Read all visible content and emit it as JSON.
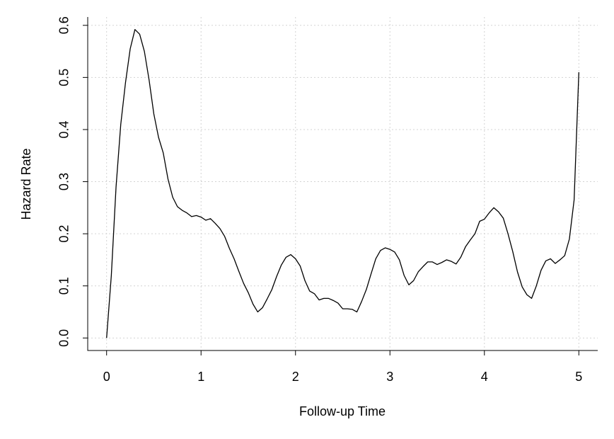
{
  "chart_data": {
    "type": "line",
    "x_label": "Follow-up Time",
    "y_label": "Hazard Rate",
    "color": "#000000",
    "grid": true,
    "xlim": [
      -0.2,
      5.2
    ],
    "ylim": [
      -0.024,
      0.616
    ],
    "xticks": [
      0,
      1,
      2,
      3,
      4,
      5
    ],
    "yticks": [
      {
        "value": 0,
        "label": "0.0"
      },
      0.1,
      0.2,
      0.3,
      0.4,
      0.5,
      0.6
    ],
    "x": [
      0,
      0.05,
      0.1,
      0.15,
      0.2,
      0.25,
      0.3,
      0.35,
      0.4,
      0.45,
      0.5,
      0.55,
      0.6,
      0.65,
      0.7,
      0.75,
      0.8,
      0.85,
      0.9,
      0.95,
      1.0,
      1.05,
      1.1,
      1.15,
      1.2,
      1.25,
      1.3,
      1.35,
      1.4,
      1.45,
      1.5,
      1.55,
      1.6,
      1.65,
      1.7,
      1.75,
      1.8,
      1.85,
      1.9,
      1.95,
      2.0,
      2.05,
      2.1,
      2.15,
      2.2,
      2.25,
      2.3,
      2.35,
      2.4,
      2.45,
      2.5,
      2.55,
      2.6,
      2.65,
      2.7,
      2.75,
      2.8,
      2.85,
      2.9,
      2.95,
      3.0,
      3.05,
      3.1,
      3.15,
      3.2,
      3.25,
      3.3,
      3.35,
      3.4,
      3.45,
      3.5,
      3.55,
      3.6,
      3.65,
      3.7,
      3.75,
      3.8,
      3.85,
      3.9,
      3.95,
      4.0,
      4.05,
      4.1,
      4.15,
      4.2,
      4.25,
      4.3,
      4.35,
      4.4,
      4.45,
      4.5,
      4.55,
      4.6,
      4.65,
      4.7,
      4.75,
      4.8,
      4.85,
      4.9,
      4.95,
      5.0
    ],
    "values": [
      0.0,
      0.12,
      0.29,
      0.41,
      0.49,
      0.555,
      0.592,
      0.583,
      0.55,
      0.495,
      0.43,
      0.385,
      0.355,
      0.305,
      0.27,
      0.252,
      0.245,
      0.24,
      0.233,
      0.235,
      0.232,
      0.226,
      0.229,
      0.22,
      0.21,
      0.195,
      0.172,
      0.152,
      0.128,
      0.105,
      0.087,
      0.065,
      0.05,
      0.058,
      0.075,
      0.093,
      0.118,
      0.14,
      0.155,
      0.16,
      0.152,
      0.138,
      0.11,
      0.09,
      0.085,
      0.073,
      0.076,
      0.076,
      0.072,
      0.067,
      0.056,
      0.056,
      0.055,
      0.05,
      0.07,
      0.093,
      0.123,
      0.152,
      0.168,
      0.173,
      0.17,
      0.165,
      0.15,
      0.12,
      0.102,
      0.11,
      0.127,
      0.137,
      0.146,
      0.146,
      0.141,
      0.145,
      0.15,
      0.147,
      0.142,
      0.155,
      0.175,
      0.188,
      0.2,
      0.224,
      0.228,
      0.24,
      0.25,
      0.242,
      0.23,
      0.2,
      0.166,
      0.127,
      0.098,
      0.083,
      0.076,
      0.1,
      0.13,
      0.148,
      0.152,
      0.143,
      0.15,
      0.158,
      0.19,
      0.265,
      0.51
    ]
  }
}
